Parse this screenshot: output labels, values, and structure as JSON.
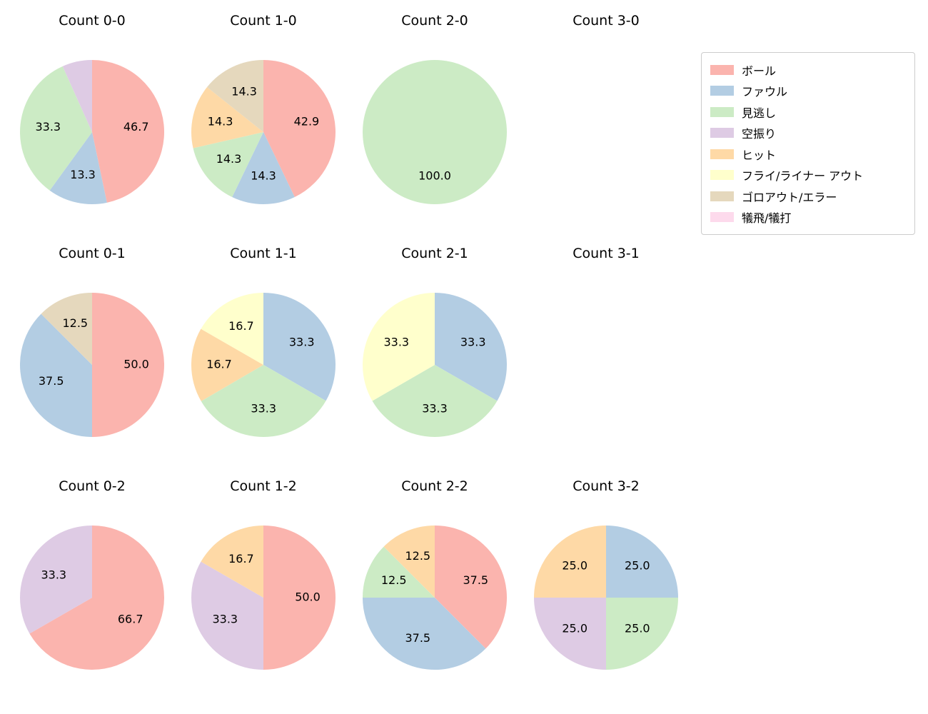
{
  "figure": {
    "background": "#ffffff"
  },
  "legend": {
    "position": "top-right",
    "items": [
      {
        "label": "ボール",
        "color": "#fbb4ae"
      },
      {
        "label": "ファウル",
        "color": "#b3cde3"
      },
      {
        "label": "見逃し",
        "color": "#ccebc5"
      },
      {
        "label": "空振り",
        "color": "#decbe4"
      },
      {
        "label": "ヒット",
        "color": "#fed9a6"
      },
      {
        "label": "フライ/ライナー アウト",
        "color": "#ffffcc"
      },
      {
        "label": "ゴロアウト/エラー",
        "color": "#e5d8bd"
      },
      {
        "label": "犠飛/犠打",
        "color": "#fddaec"
      }
    ]
  },
  "chart_data": [
    {
      "type": "pie",
      "title": "Count 0-0",
      "start_angle_deg": 90,
      "direction": "clockwise",
      "slices": [
        {
          "label": "ボール",
          "value": 46.7,
          "text": "46.7"
        },
        {
          "label": "ファウル",
          "value": 13.3,
          "text": "13.3"
        },
        {
          "label": "見逃し",
          "value": 33.3,
          "text": "33.3"
        },
        {
          "label": "空振り",
          "value": 6.7,
          "text": ""
        }
      ]
    },
    {
      "type": "pie",
      "title": "Count 1-0",
      "start_angle_deg": 90,
      "direction": "clockwise",
      "slices": [
        {
          "label": "ボール",
          "value": 42.9,
          "text": "42.9"
        },
        {
          "label": "ファウル",
          "value": 14.3,
          "text": "14.3"
        },
        {
          "label": "見逃し",
          "value": 14.3,
          "text": "14.3"
        },
        {
          "label": "ヒット",
          "value": 14.3,
          "text": "14.3"
        },
        {
          "label": "ゴロアウト/エラー",
          "value": 14.3,
          "text": "14.3"
        }
      ]
    },
    {
      "type": "pie",
      "title": "Count 2-0",
      "start_angle_deg": 90,
      "direction": "clockwise",
      "slices": [
        {
          "label": "見逃し",
          "value": 100.0,
          "text": "100.0"
        }
      ]
    },
    {
      "type": "pie",
      "title": "Count 3-0",
      "start_angle_deg": 90,
      "direction": "clockwise",
      "slices": []
    },
    {
      "type": "pie",
      "title": "Count 0-1",
      "start_angle_deg": 90,
      "direction": "clockwise",
      "slices": [
        {
          "label": "ボール",
          "value": 50.0,
          "text": "50.0"
        },
        {
          "label": "ファウル",
          "value": 37.5,
          "text": "37.5"
        },
        {
          "label": "ゴロアウト/エラー",
          "value": 12.5,
          "text": "12.5"
        }
      ]
    },
    {
      "type": "pie",
      "title": "Count 1-1",
      "start_angle_deg": 90,
      "direction": "clockwise",
      "slices": [
        {
          "label": "ファウル",
          "value": 33.3,
          "text": "33.3"
        },
        {
          "label": "見逃し",
          "value": 33.3,
          "text": "33.3"
        },
        {
          "label": "ヒット",
          "value": 16.7,
          "text": "16.7"
        },
        {
          "label": "フライ/ライナー アウト",
          "value": 16.7,
          "text": "16.7"
        }
      ]
    },
    {
      "type": "pie",
      "title": "Count 2-1",
      "start_angle_deg": 90,
      "direction": "clockwise",
      "slices": [
        {
          "label": "ファウル",
          "value": 33.3,
          "text": "33.3"
        },
        {
          "label": "見逃し",
          "value": 33.3,
          "text": "33.3"
        },
        {
          "label": "フライ/ライナー アウト",
          "value": 33.3,
          "text": "33.3"
        }
      ]
    },
    {
      "type": "pie",
      "title": "Count 3-1",
      "start_angle_deg": 90,
      "direction": "clockwise",
      "slices": []
    },
    {
      "type": "pie",
      "title": "Count 0-2",
      "start_angle_deg": 90,
      "direction": "clockwise",
      "slices": [
        {
          "label": "ボール",
          "value": 66.7,
          "text": "66.7"
        },
        {
          "label": "空振り",
          "value": 33.3,
          "text": "33.3"
        }
      ]
    },
    {
      "type": "pie",
      "title": "Count 1-2",
      "start_angle_deg": 90,
      "direction": "clockwise",
      "slices": [
        {
          "label": "ボール",
          "value": 50.0,
          "text": "50.0"
        },
        {
          "label": "空振り",
          "value": 33.3,
          "text": "33.3"
        },
        {
          "label": "ヒット",
          "value": 16.7,
          "text": "16.7"
        }
      ]
    },
    {
      "type": "pie",
      "title": "Count 2-2",
      "start_angle_deg": 90,
      "direction": "clockwise",
      "slices": [
        {
          "label": "ボール",
          "value": 37.5,
          "text": "37.5"
        },
        {
          "label": "ファウル",
          "value": 37.5,
          "text": "37.5"
        },
        {
          "label": "見逃し",
          "value": 12.5,
          "text": "12.5"
        },
        {
          "label": "ヒット",
          "value": 12.5,
          "text": "12.5"
        }
      ]
    },
    {
      "type": "pie",
      "title": "Count 3-2",
      "start_angle_deg": 90,
      "direction": "clockwise",
      "slices": [
        {
          "label": "ファウル",
          "value": 25.0,
          "text": "25.0"
        },
        {
          "label": "見逃し",
          "value": 25.0,
          "text": "25.0"
        },
        {
          "label": "空振り",
          "value": 25.0,
          "text": "25.0"
        },
        {
          "label": "ヒット",
          "value": 25.0,
          "text": "25.0"
        }
      ]
    }
  ]
}
